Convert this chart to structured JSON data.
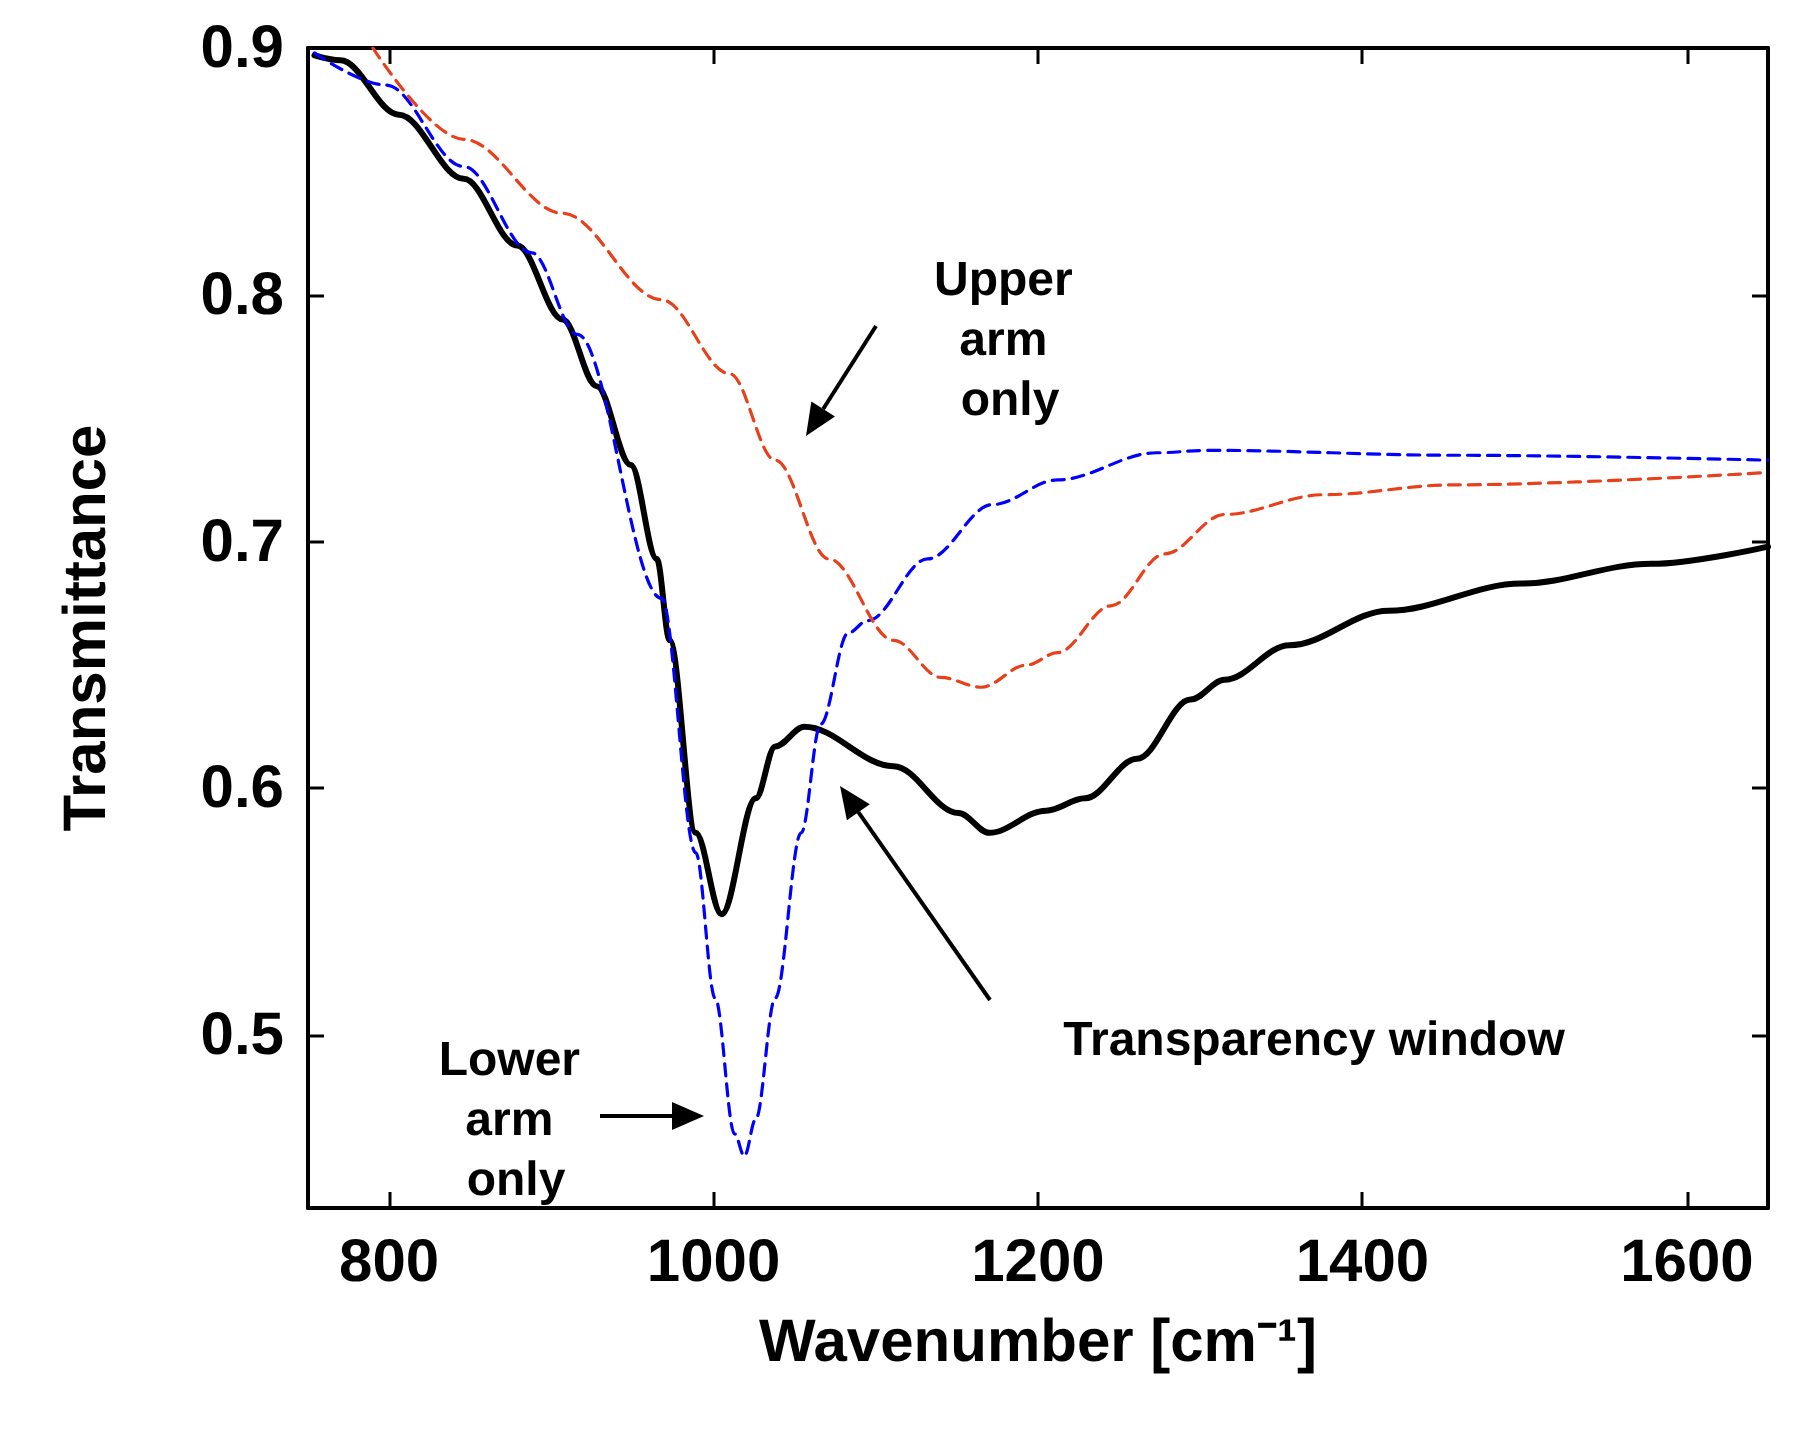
{
  "chart_data": {
    "type": "line",
    "xlabel": "Wavenumber [cm⁻¹]",
    "ylabel": "Transmittance",
    "xlim": [
      750,
      1650
    ],
    "xticks": [
      800,
      1000,
      1200,
      1400,
      1600
    ],
    "ylim": [
      0.43,
      0.9
    ],
    "yticks": [
      0.5,
      0.6,
      0.7,
      0.8,
      0.9
    ],
    "grid": false,
    "marker": "none",
    "series": [
      {
        "color": "#000000",
        "line_style": "solid",
        "x": [
          754,
          770,
          806,
          846,
          879,
          907,
          928,
          949,
          965,
          973,
          989,
          1005,
          1026,
          1038,
          1056,
          1111,
          1151,
          1170,
          1205,
          1229,
          1261,
          1294,
          1315,
          1355,
          1416,
          1498,
          1578,
          1650
        ],
        "values": [
          0.897,
          0.895,
          0.873,
          0.847,
          0.82,
          0.79,
          0.763,
          0.731,
          0.693,
          0.66,
          0.582,
          0.549,
          0.596,
          0.617,
          0.625,
          0.609,
          0.59,
          0.582,
          0.591,
          0.596,
          0.612,
          0.636,
          0.644,
          0.658,
          0.672,
          0.683,
          0.691,
          0.698
        ]
      },
      {
        "color": "#0000ff",
        "line_style": "dashed",
        "x": [
          754,
          798,
          846,
          888,
          916,
          968,
          989,
          1001,
          1013,
          1019,
          1026,
          1038,
          1054,
          1066,
          1083,
          1095,
          1132,
          1172,
          1212,
          1273,
          1306,
          1456,
          1650
        ],
        "values": [
          0.898,
          0.885,
          0.852,
          0.817,
          0.784,
          0.677,
          0.574,
          0.515,
          0.46,
          0.451,
          0.466,
          0.515,
          0.582,
          0.626,
          0.663,
          0.668,
          0.693,
          0.715,
          0.725,
          0.736,
          0.737,
          0.735,
          0.733
        ]
      },
      {
        "color": "#e8401a",
        "line_style": "dashed",
        "x": [
          790,
          846,
          907,
          968,
          1010,
          1038,
          1071,
          1111,
          1140,
          1165,
          1193,
          1212,
          1245,
          1278,
          1315,
          1376,
          1456,
          1650
        ],
        "values": [
          0.9,
          0.863,
          0.833,
          0.798,
          0.768,
          0.733,
          0.693,
          0.66,
          0.645,
          0.641,
          0.65,
          0.655,
          0.674,
          0.695,
          0.711,
          0.719,
          0.723,
          0.728
        ]
      }
    ],
    "annotations": [
      "Upper arm only",
      "Lower arm only",
      "Transparency window"
    ]
  }
}
